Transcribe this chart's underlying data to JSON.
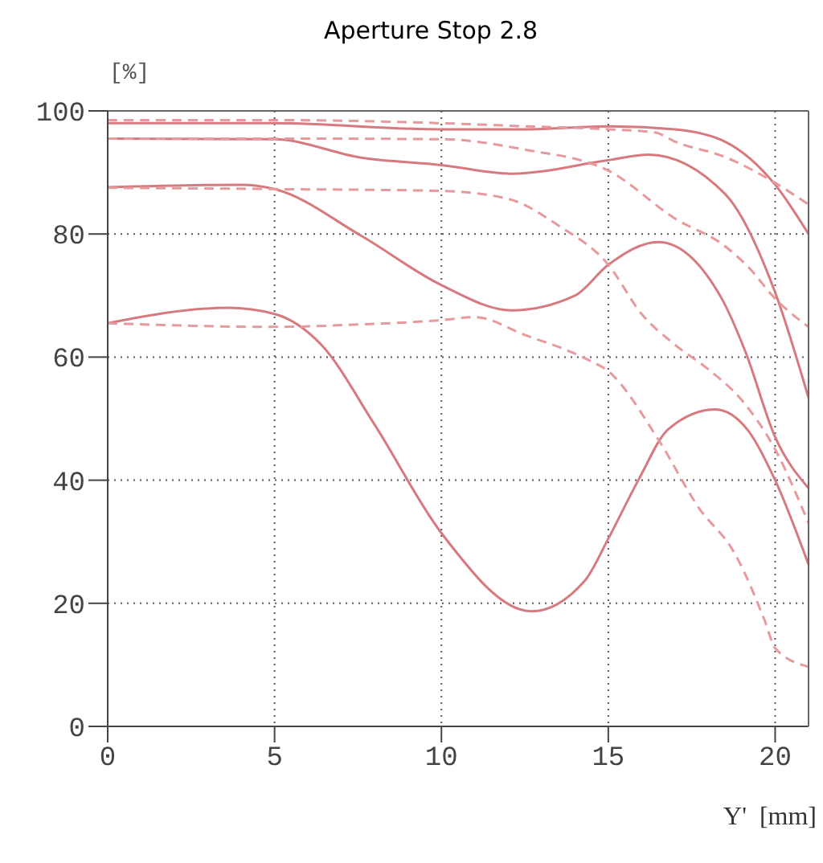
{
  "chart_data": {
    "type": "line",
    "title": "Aperture Stop 2.8",
    "xlabel": "Y'  [mm]",
    "ylabel": "[%]",
    "xlim": [
      0,
      21
    ],
    "xticks": [
      0,
      5,
      10,
      15,
      20
    ],
    "ylim": [
      0,
      100
    ],
    "yticks": [
      0,
      20,
      40,
      60,
      80,
      100
    ],
    "grid": true,
    "series": [
      {
        "color": "#d77a7f",
        "line_style": "solid",
        "x": [
          0,
          5,
          10,
          12.5,
          15,
          17,
          18.5,
          20,
          21
        ],
        "values": [
          98,
          98,
          97,
          97,
          97.5,
          97,
          95,
          88,
          80
        ]
      },
      {
        "color": "#e79a9c",
        "line_style": "dashed",
        "x": [
          0,
          5,
          10,
          12.5,
          15,
          16.4,
          17,
          18.5,
          20,
          21
        ],
        "values": [
          98.5,
          98.5,
          98,
          97.5,
          97,
          96.5,
          95,
          92.5,
          88.3,
          84.8
        ]
      },
      {
        "color": "#d77a7f",
        "line_style": "solid",
        "x": [
          0,
          5,
          7.6,
          10,
          12.1,
          15,
          16.2,
          18.5,
          20,
          21
        ],
        "values": [
          95.5,
          95.4,
          92.4,
          91.2,
          89.8,
          92,
          92.9,
          86.5,
          70.5,
          53.4
        ]
      },
      {
        "color": "#e79a9c",
        "line_style": "dashed",
        "x": [
          0,
          5,
          10,
          12.5,
          15,
          17,
          18.5,
          19.2,
          20,
          21
        ],
        "values": [
          95.5,
          95.5,
          95.4,
          93.7,
          90.3,
          82.5,
          78,
          74.6,
          69.5,
          64.9
        ]
      },
      {
        "color": "#d77a7f",
        "line_style": "solid",
        "x": [
          0,
          4,
          5,
          7.6,
          10,
          12.1,
          14,
          15,
          16.5,
          18.4,
          19.1,
          20,
          21
        ],
        "values": [
          87.6,
          88,
          87.3,
          79.7,
          71.7,
          67.6,
          70,
          75,
          78.7,
          69.5,
          61,
          47,
          38.7
        ]
      },
      {
        "color": "#e79a9c",
        "line_style": "dashed",
        "x": [
          0,
          5,
          10,
          12,
          13.5,
          15,
          16,
          17,
          18,
          19,
          20,
          21
        ],
        "values": [
          87.5,
          87.3,
          87,
          85.7,
          81.4,
          75,
          67,
          62,
          58,
          53,
          45,
          33
        ]
      },
      {
        "color": "#d77a7f",
        "line_style": "solid",
        "x": [
          0,
          3.6,
          5,
          6.4,
          8,
          10,
          12.7,
          14.3,
          15,
          15.9,
          16.8,
          18.2,
          19.2,
          20,
          21
        ],
        "values": [
          65.5,
          68,
          67,
          62,
          49,
          31.4,
          18.7,
          23.7,
          30.5,
          40,
          48.3,
          51.5,
          48,
          40,
          26.3
        ]
      },
      {
        "color": "#e79a9c",
        "line_style": "dashed",
        "x": [
          0,
          5,
          7.5,
          10,
          11,
          12.5,
          14.3,
          15,
          16.5,
          17.7,
          18.8,
          19.7,
          20,
          21
        ],
        "values": [
          65.5,
          64.9,
          65.3,
          66,
          66.5,
          63.6,
          59.8,
          57.7,
          46.6,
          35.6,
          28,
          17,
          12.7,
          9.7
        ]
      }
    ]
  }
}
